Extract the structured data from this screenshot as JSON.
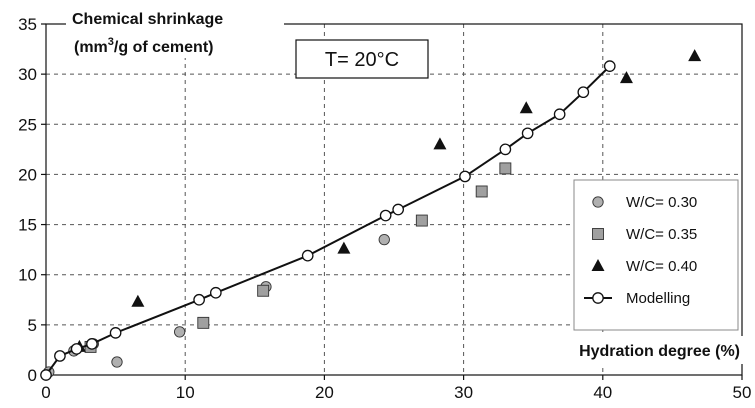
{
  "chart_data": {
    "type": "scatter",
    "title": "",
    "ylabel_line1": "Chemical shrinkage",
    "ylabel_line2_pre": "(mm",
    "ylabel_line2_sup": "3",
    "ylabel_line2_post": "/g of  cement)",
    "xlabel": "Hydration degree (%)",
    "annotation": "T= 20°C",
    "xlim": [
      0,
      50
    ],
    "ylim": [
      0,
      35
    ],
    "xticks": [
      0,
      10,
      20,
      30,
      40,
      50
    ],
    "yticks": [
      0,
      5,
      10,
      15,
      20,
      25,
      30,
      35
    ],
    "grid": true,
    "legend_position": "right",
    "series": [
      {
        "name": "W/C= 0.30",
        "marker": "circle",
        "color": "#b0b0b0",
        "x": [
          0.2,
          2.0,
          3.4,
          5.1,
          9.6,
          15.8,
          24.3
        ],
        "y": [
          0.3,
          2.4,
          3.1,
          1.3,
          4.3,
          8.8,
          13.5
        ]
      },
      {
        "name": "W/C= 0.35",
        "marker": "square",
        "color": "#a0a0a0",
        "x": [
          3.2,
          11.3,
          15.6,
          27.0,
          31.3,
          33.0
        ],
        "y": [
          2.8,
          5.2,
          8.4,
          15.4,
          18.3,
          20.6
        ]
      },
      {
        "name": "W/C= 0.40",
        "marker": "triangle",
        "color": "#111111",
        "x": [
          2.4,
          6.6,
          21.4,
          28.3,
          34.5,
          41.7,
          46.6
        ],
        "y": [
          2.8,
          7.3,
          12.6,
          23.0,
          26.6,
          29.6,
          31.8
        ]
      },
      {
        "name": "Modelling",
        "marker": "open-circle-line",
        "color": "#111111",
        "x": [
          0.0,
          1.0,
          2.2,
          3.3,
          5.0,
          11.0,
          12.2,
          18.8,
          24.4,
          25.3,
          30.1,
          33.0,
          34.6,
          36.9,
          38.6,
          40.5
        ],
        "y": [
          0.0,
          1.9,
          2.6,
          3.1,
          4.2,
          7.5,
          8.2,
          11.9,
          15.9,
          16.5,
          19.8,
          22.5,
          24.1,
          26.0,
          28.2,
          30.8
        ]
      }
    ]
  }
}
